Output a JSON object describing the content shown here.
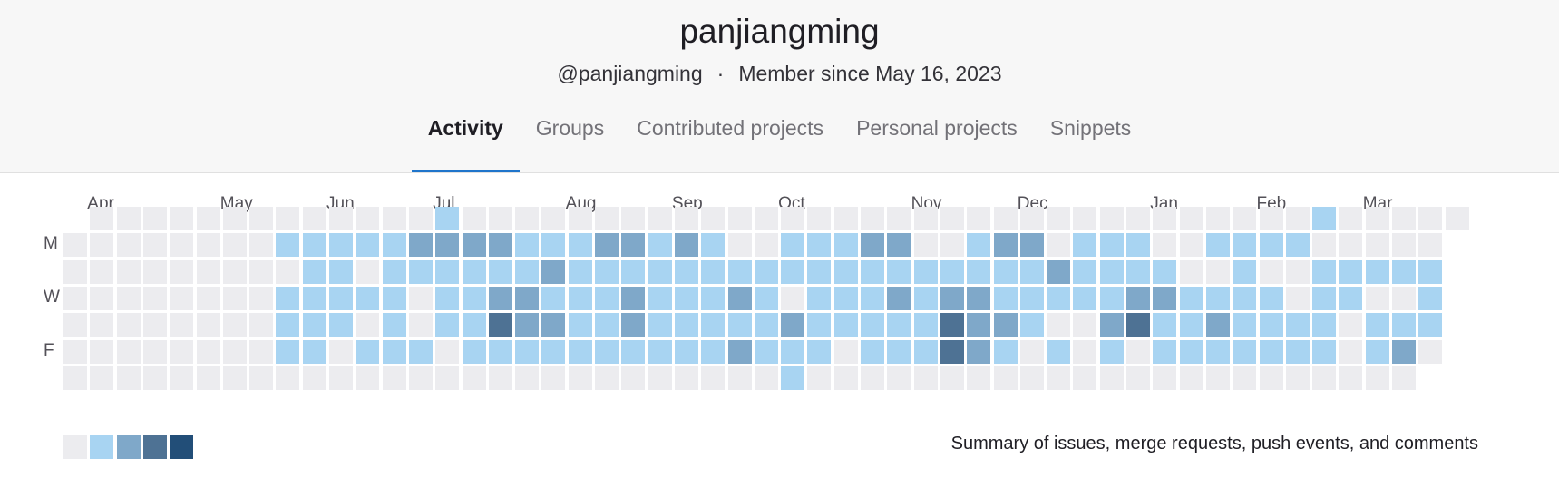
{
  "profile": {
    "name": "panjiangming",
    "handle": "@panjiangming",
    "separator": "·",
    "member_since": "Member since May 16, 2023"
  },
  "tabs": [
    {
      "label": "Activity",
      "active": true
    },
    {
      "label": "Groups",
      "active": false
    },
    {
      "label": "Contributed projects",
      "active": false
    },
    {
      "label": "Personal projects",
      "active": false
    },
    {
      "label": "Snippets",
      "active": false
    }
  ],
  "calendar": {
    "months": [
      {
        "label": "Apr",
        "week": 1
      },
      {
        "label": "May",
        "week": 6
      },
      {
        "label": "Jun",
        "week": 10
      },
      {
        "label": "Jul",
        "week": 14
      },
      {
        "label": "Aug",
        "week": 19
      },
      {
        "label": "Sep",
        "week": 23
      },
      {
        "label": "Oct",
        "week": 27
      },
      {
        "label": "Nov",
        "week": 32
      },
      {
        "label": "Dec",
        "week": 36
      },
      {
        "label": "Jan",
        "week": 41
      },
      {
        "label": "Feb",
        "week": 45
      },
      {
        "label": "Mar",
        "week": 49
      }
    ],
    "day_labels": [
      {
        "label": "M",
        "row": 1
      },
      {
        "label": "W",
        "row": 3
      },
      {
        "label": "F",
        "row": 5
      }
    ],
    "level_colors": [
      "#ececef",
      "#a8d4f2",
      "#7fa8c9",
      "#4e7294",
      "#224e78"
    ],
    "grid": [
      "-0000000000000100000000000000000000000000000000100000",
      "0000000011111222211122121001112200122011100111100000",
      "0000000001101111112111111111111111111211110010011111",
      "0000000011111011221112111210111212211111221111011001",
      "0000000011101011322112111112111113221002311211110111",
      "0000000011011101111111111211101113210101011111110120",
      "000000000000000000000000000100000000000000000000000-"
    ],
    "summary": "Summary of issues, merge requests, push events, and comments"
  }
}
